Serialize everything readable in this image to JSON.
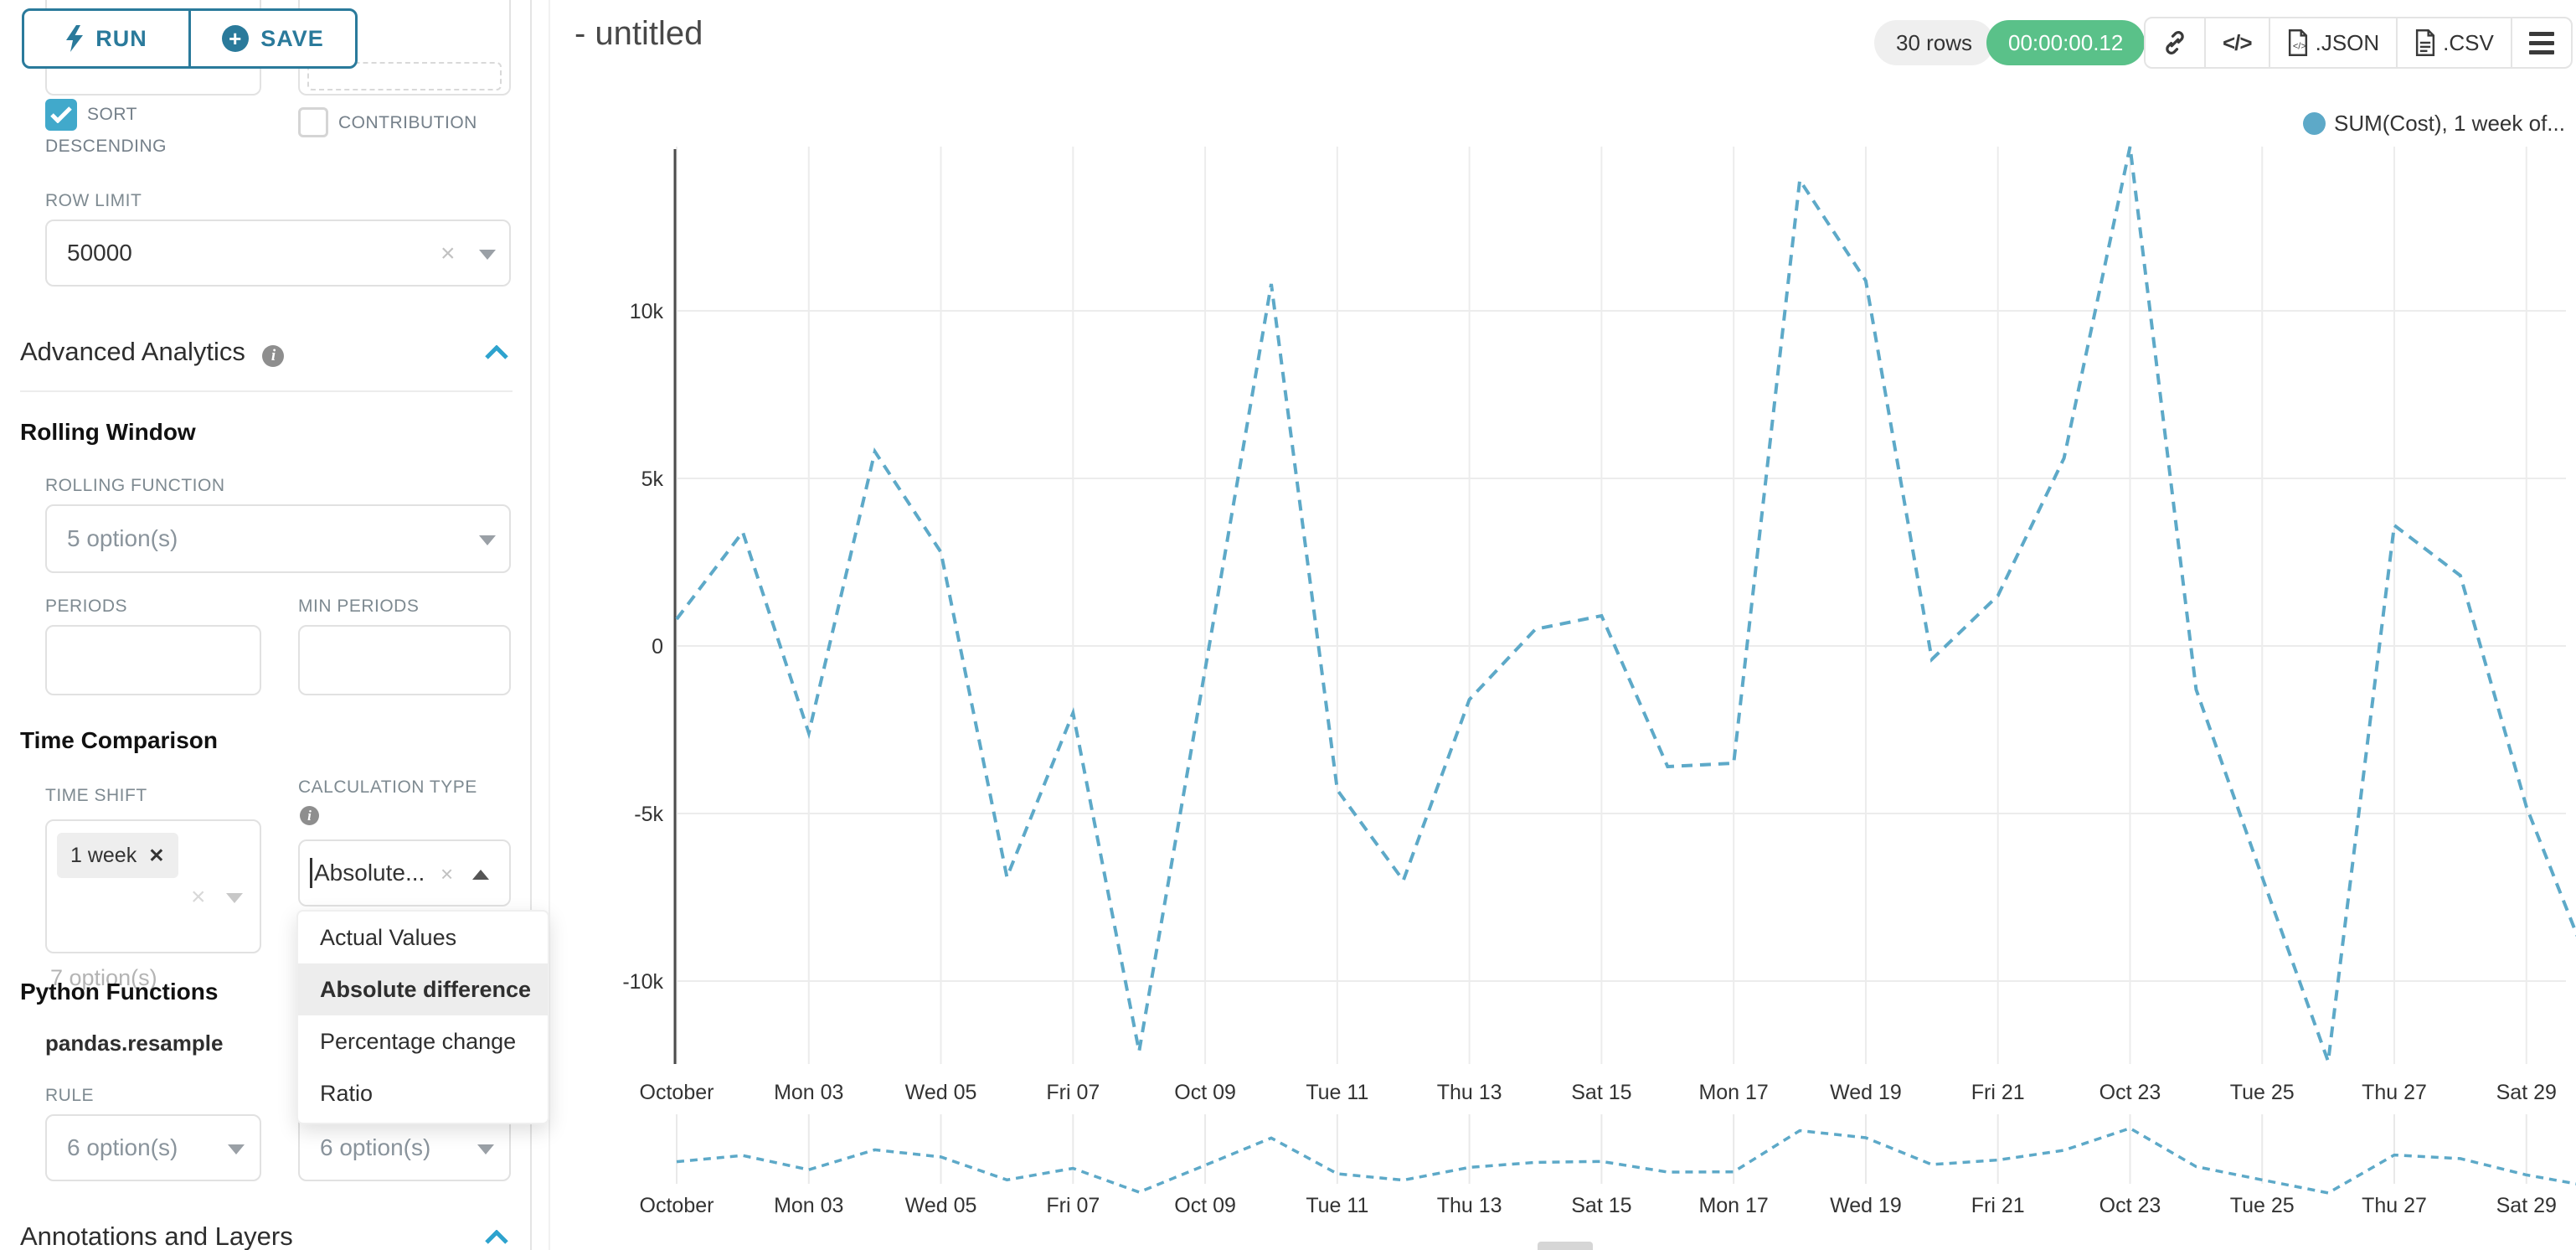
{
  "colors": {
    "accent_teal": "#2A7A9B",
    "checkbox_teal": "#41A9CB",
    "chevron_teal": "#2EA3CE",
    "success_green": "#5AC189",
    "series_blue": "#5DA9C8",
    "grid_gray": "#ECECEC"
  },
  "toolbar": {
    "run_label": "RUN",
    "save_label": "SAVE"
  },
  "sidebar": {
    "partial_row": {
      "left_value": "7 option(s)"
    },
    "sort_descending": {
      "label": "SORT DESCENDING",
      "checked": true
    },
    "contribution": {
      "label": "CONTRIBUTION",
      "checked": false
    },
    "row_limit": {
      "label": "ROW LIMIT",
      "value": "50000"
    },
    "advanced_analytics": {
      "title": "Advanced Analytics"
    },
    "rolling_window": {
      "title": "Rolling Window",
      "rolling_function": {
        "label": "ROLLING FUNCTION",
        "value": "5 option(s)"
      },
      "periods_label": "PERIODS",
      "min_periods_label": "MIN PERIODS"
    },
    "time_comparison": {
      "title": "Time Comparison",
      "time_shift": {
        "label": "TIME SHIFT",
        "tag": "1 week",
        "helper": "7 option(s)"
      },
      "calculation_type": {
        "label": "CALCULATION TYPE",
        "value": "Absolute...",
        "dropdown": {
          "items": [
            "Actual Values",
            "Absolute difference",
            "Percentage change",
            "Ratio"
          ],
          "selected": "Absolute difference"
        }
      }
    },
    "python_functions": {
      "title": "Python Functions",
      "subtitle": "pandas.resample",
      "rule_label": "RULE",
      "rule_value": "6 option(s)",
      "second_value": "6 option(s)"
    },
    "annotations": {
      "title": "Annotations and Layers"
    }
  },
  "header": {
    "title": "- untitled",
    "rows_badge": "30 rows",
    "timer_badge": "00:00:00.12",
    "export_json": ".JSON",
    "export_csv": ".CSV"
  },
  "legend": {
    "label": "SUM(Cost), 1 week of...",
    "color": "#5DA9C8"
  },
  "chart_data": {
    "type": "line",
    "title": "",
    "line_style": "dashed",
    "color": "#5DA9C8",
    "grid": true,
    "legend_position": "top-right",
    "series": [
      {
        "name": "SUM(Cost), 1 week offset",
        "x": [
          "Oct 01",
          "Oct 02",
          "Oct 03",
          "Oct 04",
          "Oct 05",
          "Oct 06",
          "Oct 07",
          "Oct 08",
          "Oct 09",
          "Oct 10",
          "Oct 11",
          "Oct 12",
          "Oct 13",
          "Oct 14",
          "Oct 15",
          "Oct 16",
          "Oct 17",
          "Oct 18",
          "Oct 19",
          "Oct 20",
          "Oct 21",
          "Oct 22",
          "Oct 23",
          "Oct 24",
          "Oct 25",
          "Oct 26",
          "Oct 27",
          "Oct 28",
          "Oct 29",
          "Oct 30"
        ],
        "values": [
          800,
          3400,
          -2600,
          5800,
          2800,
          -6900,
          -2000,
          -12100,
          -700,
          10800,
          -4300,
          -7000,
          -1600,
          500,
          900,
          -3600,
          -3500,
          13900,
          10900,
          -400,
          1500,
          5600,
          14900,
          -1300,
          -6900,
          -12400,
          3600,
          2100,
          -4800,
          -9800
        ]
      }
    ],
    "x_tick_labels": [
      "October",
      "Mon 03",
      "Wed 05",
      "Fri 07",
      "Oct 09",
      "Tue 11",
      "Thu 13",
      "Sat 15",
      "Mon 17",
      "Wed 19",
      "Fri 21",
      "Oct 23",
      "Tue 25",
      "Thu 27",
      "Sat 29"
    ],
    "y_ticks": [
      10000,
      5000,
      0,
      -5000,
      -10000
    ],
    "y_tick_labels": [
      "10k",
      "5k",
      "0",
      "-5k",
      "-10k"
    ],
    "ylim": [
      -13500,
      15500
    ],
    "mini_chart": {
      "enabled": true,
      "x_tick_labels": [
        "October",
        "Mon 03",
        "Wed 05",
        "Fri 07",
        "Oct 09",
        "Tue 11",
        "Thu 13",
        "Sat 15",
        "Mon 17",
        "Wed 19",
        "Fri 21",
        "Oct 23",
        "Tue 25",
        "Thu 27",
        "Sat 29"
      ]
    }
  }
}
